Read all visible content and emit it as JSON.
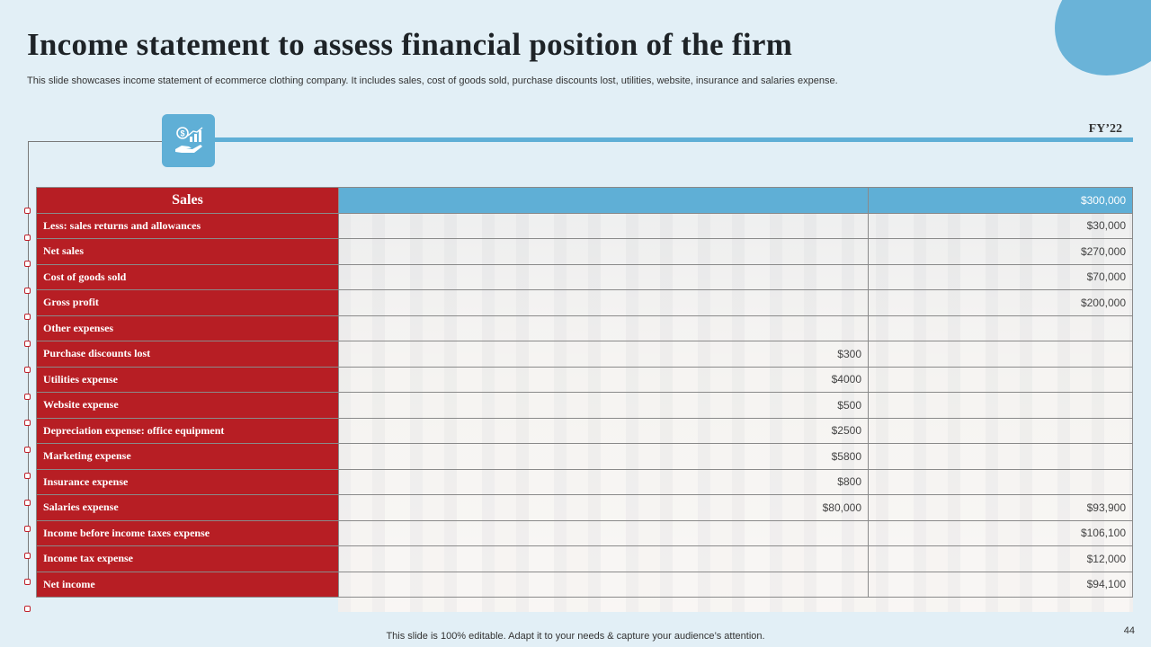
{
  "title": "Income statement to assess financial position of the firm",
  "subtitle": "This slide showcases income statement of ecommerce clothing company. It includes sales, cost of goods sold, purchase discounts lost, utilities, website, insurance and salaries expense.",
  "column_header": "FY’22",
  "icon": "money-growth-hand-icon",
  "colors": {
    "accent_blue": "#5fafd6",
    "label_red": "#b71e24",
    "background": "#e2eff6"
  },
  "rows": [
    {
      "label": "Sales",
      "sub": "",
      "fy": "$300,000"
    },
    {
      "label": "Less: sales returns and allowances",
      "sub": "",
      "fy": "$30,000"
    },
    {
      "label": "Net sales",
      "sub": "",
      "fy": "$270,000"
    },
    {
      "label": "Cost of goods sold",
      "sub": "",
      "fy": "$70,000"
    },
    {
      "label": "Gross profit",
      "sub": "",
      "fy": "$200,000"
    },
    {
      "label": "Other expenses",
      "sub": "",
      "fy": ""
    },
    {
      "label": "Purchase discounts lost",
      "sub": "$300",
      "fy": ""
    },
    {
      "label": "Utilities expense",
      "sub": "$4000",
      "fy": ""
    },
    {
      "label": "Website expense",
      "sub": "$500",
      "fy": ""
    },
    {
      "label": "Depreciation expense: office equipment",
      "sub": "$2500",
      "fy": ""
    },
    {
      "label": "Marketing expense",
      "sub": "$5800",
      "fy": ""
    },
    {
      "label": "Insurance expense",
      "sub": "$800",
      "fy": ""
    },
    {
      "label": "Salaries expense",
      "sub": "$80,000",
      "fy": "$93,900"
    },
    {
      "label": "Income before income taxes expense",
      "sub": "",
      "fy": "$106,100"
    },
    {
      "label": "Income tax expense",
      "sub": "",
      "fy": "$12,000"
    },
    {
      "label": "Net income",
      "sub": "",
      "fy": "$94,100"
    }
  ],
  "footer": "This slide is 100% editable. Adapt it to your needs & capture your audience’s attention.",
  "page_number": "44"
}
